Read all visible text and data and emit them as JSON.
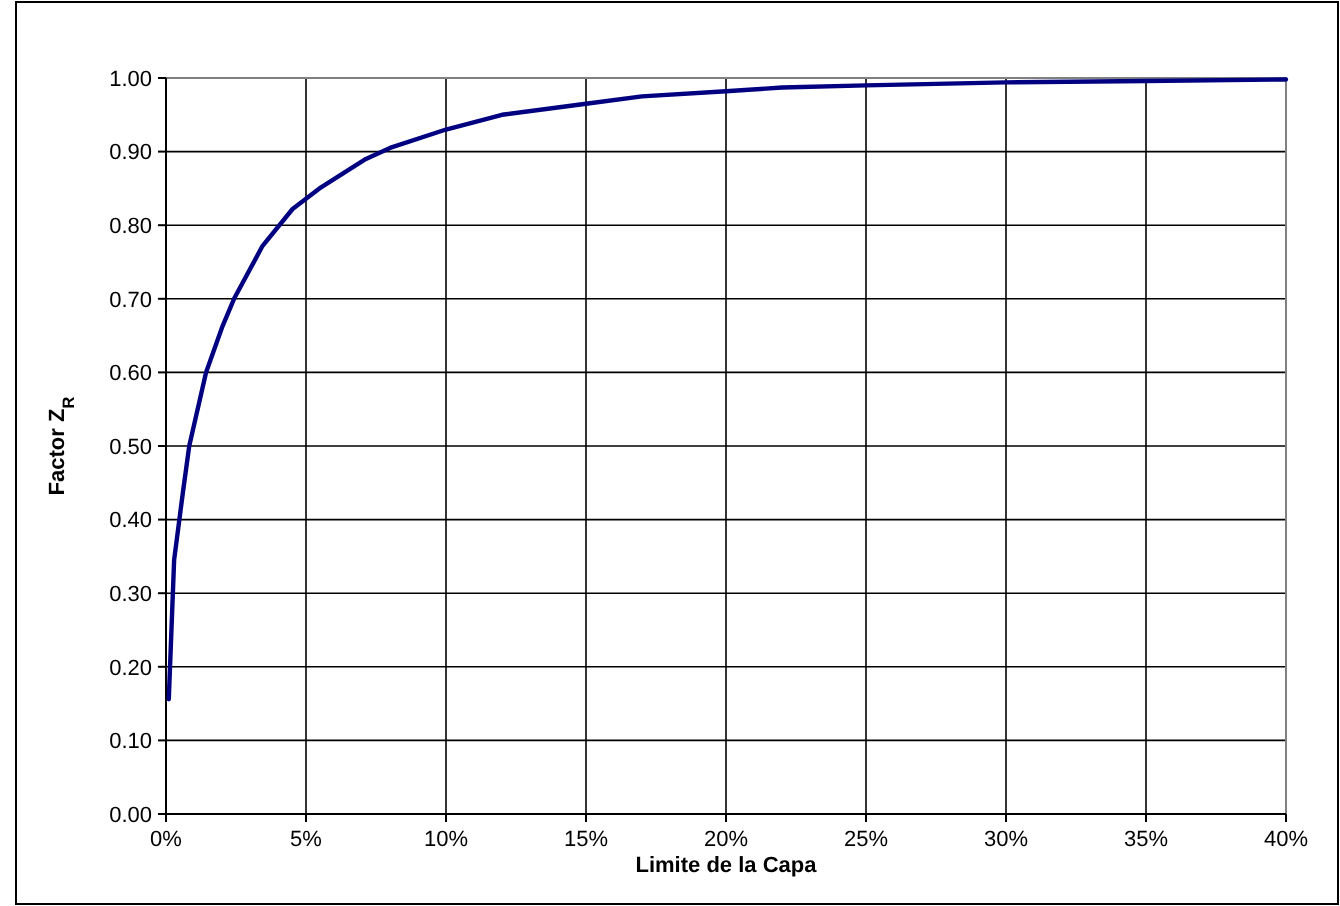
{
  "chart_data": {
    "type": "line",
    "xlabel": "Limite de la Capa",
    "ylabel": "Factor Z$_{R}$",
    "x": [
      0.1,
      0.29,
      0.6,
      0.83,
      1.43,
      2.02,
      2.43,
      3.45,
      4.52,
      5.48,
      7.14,
      8,
      10,
      12,
      15,
      17,
      20,
      22,
      25,
      30,
      35,
      40
    ],
    "series": [
      {
        "color": "#000080",
        "values": [
          0.156,
          0.345,
          0.436,
          0.5,
          0.6,
          0.663,
          0.7,
          0.772,
          0.822,
          0.85,
          0.89,
          0.905,
          0.93,
          0.95,
          0.965,
          0.975,
          0.982,
          0.987,
          0.99,
          0.994,
          0.996,
          0.998
        ]
      }
    ],
    "xlim": [
      0,
      40
    ],
    "xticks": [
      {
        "value": 0,
        "label": "0%"
      },
      {
        "value": 5,
        "label": "5%"
      },
      {
        "value": 10,
        "label": "10%"
      },
      {
        "value": 15,
        "label": "15%"
      },
      {
        "value": 20,
        "label": "20%"
      },
      {
        "value": 25,
        "label": "25%"
      },
      {
        "value": 30,
        "label": "30%"
      },
      {
        "value": 35,
        "label": "35%"
      },
      {
        "value": 40,
        "label": "40%"
      }
    ],
    "ylim": [
      0,
      1
    ],
    "yticks": [
      {
        "value": 0,
        "label": "0.00"
      },
      {
        "value": 0.1,
        "label": "0.10"
      },
      {
        "value": 0.2,
        "label": "0.20"
      },
      {
        "value": 0.3,
        "label": "0.30"
      },
      {
        "value": 0.4,
        "label": "0.40"
      },
      {
        "value": 0.5,
        "label": "0.50"
      },
      {
        "value": 0.6,
        "label": "0.60"
      },
      {
        "value": 0.7,
        "label": "0.70"
      },
      {
        "value": 0.8,
        "label": "0.80"
      },
      {
        "value": 0.9,
        "label": "0.90"
      },
      {
        "value": 1,
        "label": "1.00"
      }
    ],
    "grid": true,
    "marker": "none",
    "line_style": "solid"
  }
}
